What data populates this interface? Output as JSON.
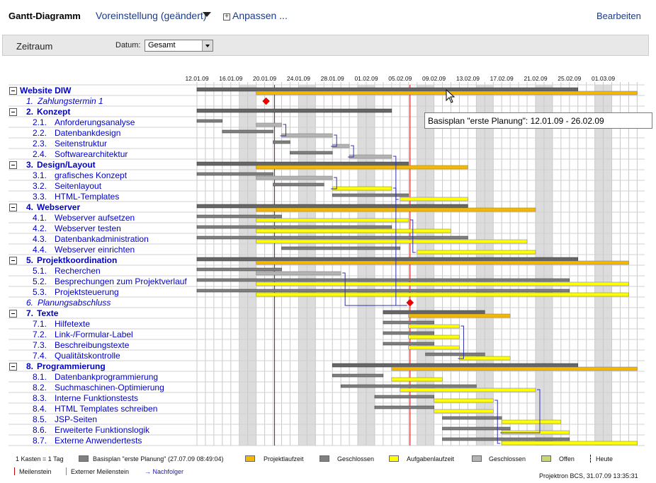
{
  "header": {
    "title": "Gantt-Diagramm",
    "preset": "Voreinstellung (geändert)",
    "customize": "Anpassen ...",
    "edit": "Bearbeiten"
  },
  "filter": {
    "title": "Zeitraum",
    "date_label": "Datum:",
    "date_value": "Gesamt"
  },
  "timeline": {
    "start": "12.01.09",
    "end": "05.03.09",
    "today_line": "06.02.09",
    "other_red_line": "21.01.09",
    "tick_labels": [
      "12.01.09",
      "16.01.09",
      "20.01.09",
      "24.01.09",
      "28.01.09",
      "01.02.09",
      "05.02.09",
      "09.02.09",
      "13.02.09",
      "17.02.09",
      "21.02.09",
      "25.02.09",
      "01.03.09"
    ]
  },
  "tasks": [
    {
      "kind": "top",
      "num": "",
      "name": "Website DIW",
      "baseline": [
        "12.01.09",
        "26.02.09"
      ],
      "plan": [
        "19.01.09",
        "05.03.09"
      ],
      "style": "group"
    },
    {
      "kind": "milestone",
      "num": "1.",
      "name": "Zahlungstermin 1",
      "milestone": "20.01.09"
    },
    {
      "kind": "group",
      "num": "2.",
      "name": "Konzept",
      "baseline": [
        "12.01.09",
        "04.02.09"
      ],
      "plan": null,
      "style": "group"
    },
    {
      "kind": "sub",
      "num": "2.1.",
      "name": "Anforderungsanalyse",
      "baseline": [
        "12.01.09",
        "15.01.09"
      ],
      "plan": [
        "19.01.09",
        "22.01.09"
      ],
      "style": "closed"
    },
    {
      "kind": "sub",
      "num": "2.2.",
      "name": "Datenbankdesign",
      "baseline": [
        "15.01.09",
        "21.01.09"
      ],
      "plan": [
        "22.01.09",
        "28.01.09"
      ],
      "style": "closed"
    },
    {
      "kind": "sub",
      "num": "2.3.",
      "name": "Seitenstruktur",
      "baseline": [
        "21.01.09",
        "23.01.09"
      ],
      "plan": [
        "28.01.09",
        "30.01.09"
      ],
      "style": "closed"
    },
    {
      "kind": "sub",
      "num": "2.4.",
      "name": "Softwarearchitektur",
      "baseline": [
        "23.01.09",
        "28.01.09"
      ],
      "plan": [
        "30.01.09",
        "04.02.09"
      ],
      "style": "closed"
    },
    {
      "kind": "group",
      "num": "3.",
      "name": "Design/Layout",
      "baseline": [
        "12.01.09",
        "06.02.09"
      ],
      "plan": [
        "19.01.09",
        "13.02.09"
      ],
      "style": "group"
    },
    {
      "kind": "sub",
      "num": "3.1.",
      "name": "grafisches Konzept",
      "baseline": [
        "12.01.09",
        "21.01.09"
      ],
      "plan": [
        "19.01.09",
        "28.01.09"
      ],
      "style": "closed"
    },
    {
      "kind": "sub",
      "num": "3.2.",
      "name": "Seitenlayout",
      "baseline": [
        "21.01.09",
        "27.01.09"
      ],
      "plan": [
        "28.01.09",
        "04.02.09"
      ],
      "style": "task"
    },
    {
      "kind": "sub",
      "num": "3.3.",
      "name": "HTML-Templates",
      "baseline": [
        "28.01.09",
        "06.02.09"
      ],
      "plan": [
        "05.02.09",
        "13.02.09"
      ],
      "style": "task"
    },
    {
      "kind": "group",
      "num": "4.",
      "name": "Webserver",
      "baseline": [
        "12.01.09",
        "13.02.09"
      ],
      "plan": [
        "19.01.09",
        "21.02.09"
      ],
      "style": "group"
    },
    {
      "kind": "sub",
      "num": "4.1.",
      "name": "Webserver aufsetzen",
      "baseline": [
        "12.01.09",
        "22.01.09"
      ],
      "plan": [
        "19.01.09",
        "06.02.09"
      ],
      "style": "task"
    },
    {
      "kind": "sub",
      "num": "4.2.",
      "name": "Webserver testen",
      "baseline": [
        "12.01.09",
        "04.02.09"
      ],
      "plan": [
        "19.01.09",
        "11.02.09"
      ],
      "style": "task"
    },
    {
      "kind": "sub",
      "num": "4.3.",
      "name": "Datenbankadministration",
      "baseline": [
        "12.01.09",
        "13.02.09"
      ],
      "plan": [
        "19.01.09",
        "20.02.09"
      ],
      "style": "task"
    },
    {
      "kind": "sub",
      "num": "4.4.",
      "name": "Webserver einrichten",
      "baseline": [
        "22.01.09",
        "05.02.09"
      ],
      "plan": [
        "07.02.09",
        "21.02.09"
      ],
      "style": "task"
    },
    {
      "kind": "group",
      "num": "5.",
      "name": "Projektkoordination",
      "baseline": [
        "12.01.09",
        "26.02.09"
      ],
      "plan": [
        "19.01.09",
        "04.03.09"
      ],
      "style": "group"
    },
    {
      "kind": "sub",
      "num": "5.1.",
      "name": "Recherchen",
      "baseline": [
        "12.01.09",
        "22.01.09"
      ],
      "plan": [
        "19.01.09",
        "29.01.09"
      ],
      "style": "closed"
    },
    {
      "kind": "sub",
      "num": "5.2.",
      "name": "Besprechungen zum Projektverlauf",
      "baseline": [
        "12.01.09",
        "25.02.09"
      ],
      "plan": [
        "19.01.09",
        "04.03.09"
      ],
      "style": "task"
    },
    {
      "kind": "sub",
      "num": "5.3.",
      "name": "Projektsteuerung",
      "baseline": [
        "12.01.09",
        "25.02.09"
      ],
      "plan": [
        "19.01.09",
        "04.03.09"
      ],
      "style": "task"
    },
    {
      "kind": "milestone",
      "num": "6.",
      "name": "Planungsabschluss",
      "milestone": "06.02.09"
    },
    {
      "kind": "group",
      "num": "7.",
      "name": "Texte",
      "baseline": [
        "03.02.09",
        "15.02.09"
      ],
      "plan": [
        "06.02.09",
        "18.02.09"
      ],
      "style": "group"
    },
    {
      "kind": "sub",
      "num": "7.1.",
      "name": "Hilfetexte",
      "baseline": [
        "03.02.09",
        "09.02.09"
      ],
      "plan": [
        "06.02.09",
        "12.02.09"
      ],
      "style": "task"
    },
    {
      "kind": "sub",
      "num": "7.2.",
      "name": "Link-/Formular-Label",
      "baseline": [
        "03.02.09",
        "09.02.09"
      ],
      "plan": [
        "06.02.09",
        "12.02.09"
      ],
      "style": "task"
    },
    {
      "kind": "sub",
      "num": "7.3.",
      "name": "Beschreibungstexte",
      "baseline": [
        "03.02.09",
        "09.02.09"
      ],
      "plan": [
        "06.02.09",
        "12.02.09"
      ],
      "style": "task"
    },
    {
      "kind": "sub",
      "num": "7.4.",
      "name": "Qualitätskontrolle",
      "baseline": [
        "08.02.09",
        "15.02.09"
      ],
      "plan": [
        "12.02.09",
        "18.02.09"
      ],
      "style": "task"
    },
    {
      "kind": "group",
      "num": "8.",
      "name": "Programmierung",
      "baseline": [
        "28.01.09",
        "26.02.09"
      ],
      "plan": [
        "04.02.09",
        "05.03.09"
      ],
      "style": "group"
    },
    {
      "kind": "sub",
      "num": "8.1.",
      "name": "Datenbankprogrammierung",
      "baseline": [
        "28.01.09",
        "03.02.09"
      ],
      "plan": [
        "04.02.09",
        "10.02.09"
      ],
      "style": "task"
    },
    {
      "kind": "sub",
      "num": "8.2.",
      "name": "Suchmaschinen-Optimierung",
      "baseline": [
        "29.01.09",
        "14.02.09"
      ],
      "plan": [
        "05.02.09",
        "21.02.09"
      ],
      "style": "task"
    },
    {
      "kind": "sub",
      "num": "8.3.",
      "name": "Interne Funktionstests",
      "baseline": [
        "02.02.09",
        "09.02.09"
      ],
      "plan": [
        "09.02.09",
        "16.02.09"
      ],
      "style": "task"
    },
    {
      "kind": "sub",
      "num": "8.4.",
      "name": "HTML Templates schreiben",
      "baseline": [
        "02.02.09",
        "09.02.09"
      ],
      "plan": [
        "09.02.09",
        "16.02.09"
      ],
      "style": "task"
    },
    {
      "kind": "sub",
      "num": "8.5.",
      "name": "JSP-Seiten",
      "baseline": [
        "10.02.09",
        "17.02.09"
      ],
      "plan": [
        "17.02.09",
        "24.02.09"
      ],
      "style": "task"
    },
    {
      "kind": "sub",
      "num": "8.6.",
      "name": "Erweiterte Funktionslogik",
      "baseline": [
        "10.02.09",
        "18.02.09"
      ],
      "plan": [
        "17.02.09",
        "25.02.09"
      ],
      "style": "task"
    },
    {
      "kind": "sub",
      "num": "8.7.",
      "name": "Externe Anwendertests",
      "baseline": [
        "10.02.09",
        "25.02.09"
      ],
      "plan": [
        "17.02.09",
        "05.03.09"
      ],
      "style": "task"
    }
  ],
  "tooltip": "Basisplan \"erste Planung\": 12.01.09 - 26.02.09",
  "legend": {
    "scale": "1 Kasten = 1 Tag",
    "baseline": "Basisplan \"erste Planung\" (27.07.09 08:49:04)",
    "project": "Projektlaufzeit",
    "closed1": "Geschlossen",
    "task": "Aufgabenlaufzeit",
    "closed2": "Geschlossen",
    "open": "Offen",
    "today": "Heute",
    "milestone": "Meilenstein",
    "ext_milestone": "Externer Meilenstein",
    "successor": "→ Nachfolger",
    "stamp": "Projektron BCS, 31.07.09  13:35:31"
  },
  "colors": {
    "link": "#0000cc",
    "project_bar": "#f5b800",
    "task_bar": "#ffff00",
    "closed_bar": "#b4b4b4",
    "baseline_bar": "#808080",
    "open_bar": "#c8d86a",
    "weekend": "#dcdcdc",
    "today_line": "#d00000",
    "milestone": "#ee0000"
  }
}
